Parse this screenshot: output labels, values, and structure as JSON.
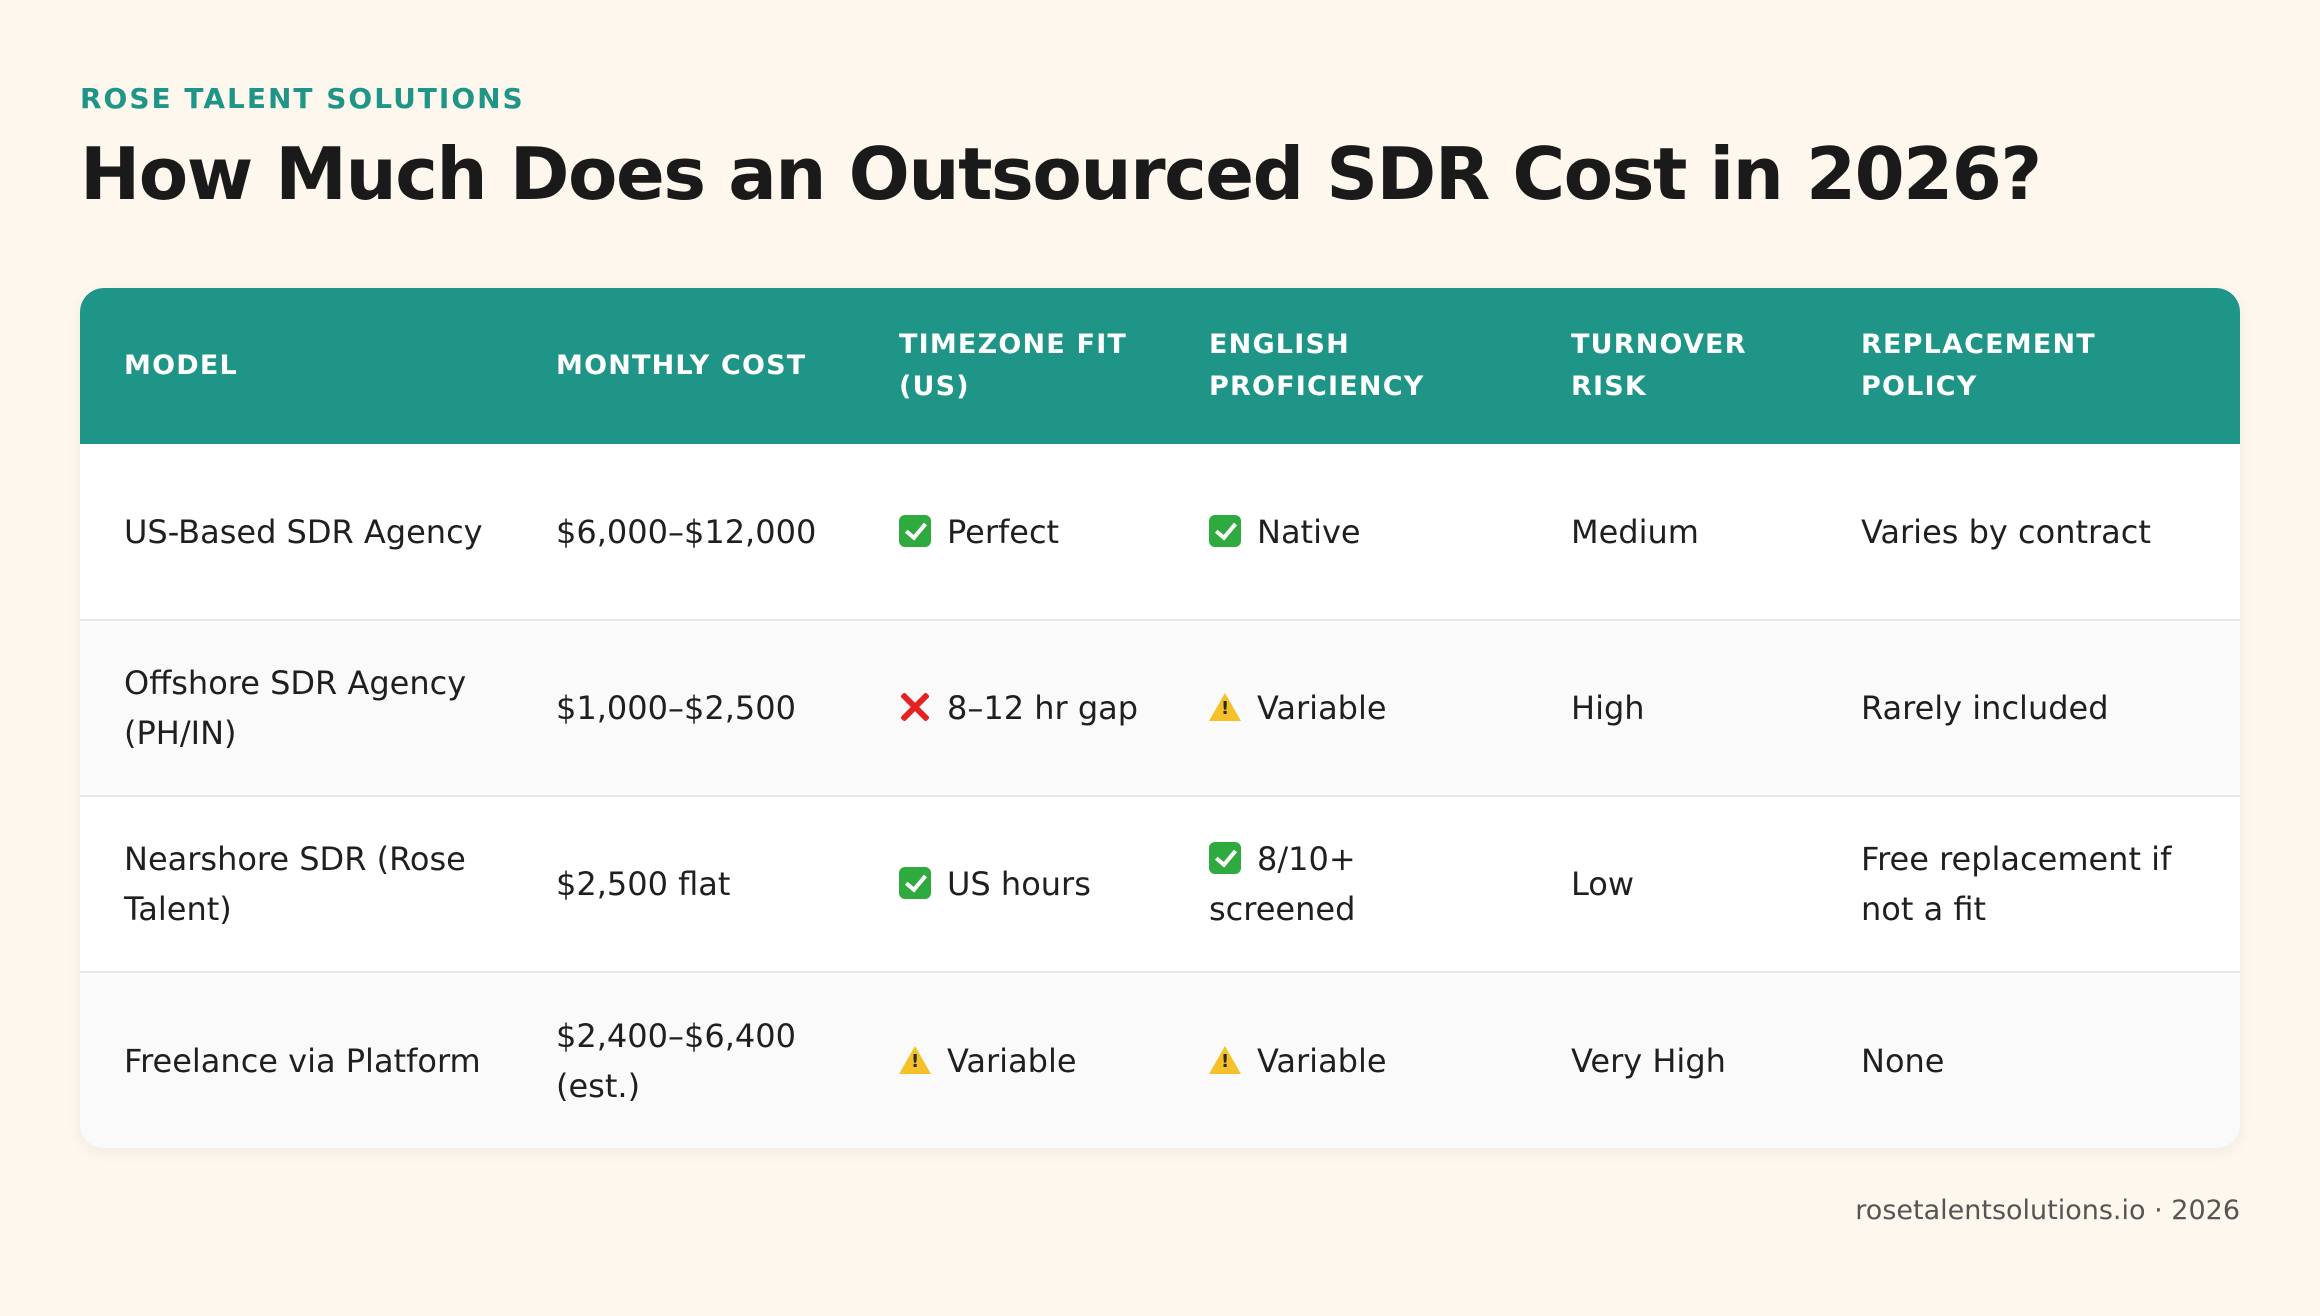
{
  "header": {
    "brand": "ROSE TALENT SOLUTIONS",
    "title": "How Much Does an Outsourced SDR Cost in 2026?"
  },
  "table": {
    "columns": [
      "MODEL",
      "MONTHLY COST",
      "TIMEZONE FIT (US)",
      "ENGLISH PROFICIENCY",
      "TURNOVER RISK",
      "REPLACEMENT POLICY"
    ],
    "rows": [
      {
        "model": "US-Based SDR Agency",
        "monthly_cost": "$6,000–$12,000",
        "timezone_icon": "check-icon",
        "timezone": "Perfect",
        "english_icon": "check-icon",
        "english": "Native",
        "turnover": "Medium",
        "replacement": "Varies by contract"
      },
      {
        "model": "Offshore SDR Agency (PH/IN)",
        "monthly_cost": "$1,000–$2,500",
        "timezone_icon": "cross-icon",
        "timezone": "8–12 hr gap",
        "english_icon": "warning-icon",
        "english": "Variable",
        "turnover": "High",
        "replacement": "Rarely included"
      },
      {
        "model": "Nearshore SDR (Rose Talent)",
        "monthly_cost": "$2,500 flat",
        "timezone_icon": "check-icon",
        "timezone": "US hours",
        "english_icon": "check-icon",
        "english": "8/10+ screened",
        "turnover": "Low",
        "replacement": "Free replacement if not a fit"
      },
      {
        "model": "Freelance via Platform",
        "monthly_cost": "$2,400–$6,400 (est.)",
        "timezone_icon": "warning-icon",
        "timezone": "Variable",
        "english_icon": "warning-icon",
        "english": "Variable",
        "turnover": "Very High",
        "replacement": "None"
      }
    ]
  },
  "footer": {
    "text": "rosetalentsolutions.io · 2026"
  },
  "colors": {
    "accent": "#1f9587",
    "background": "#fdf7ee",
    "check": "#2eaa3f",
    "cross": "#e52222",
    "warning": "#f5c12a"
  }
}
